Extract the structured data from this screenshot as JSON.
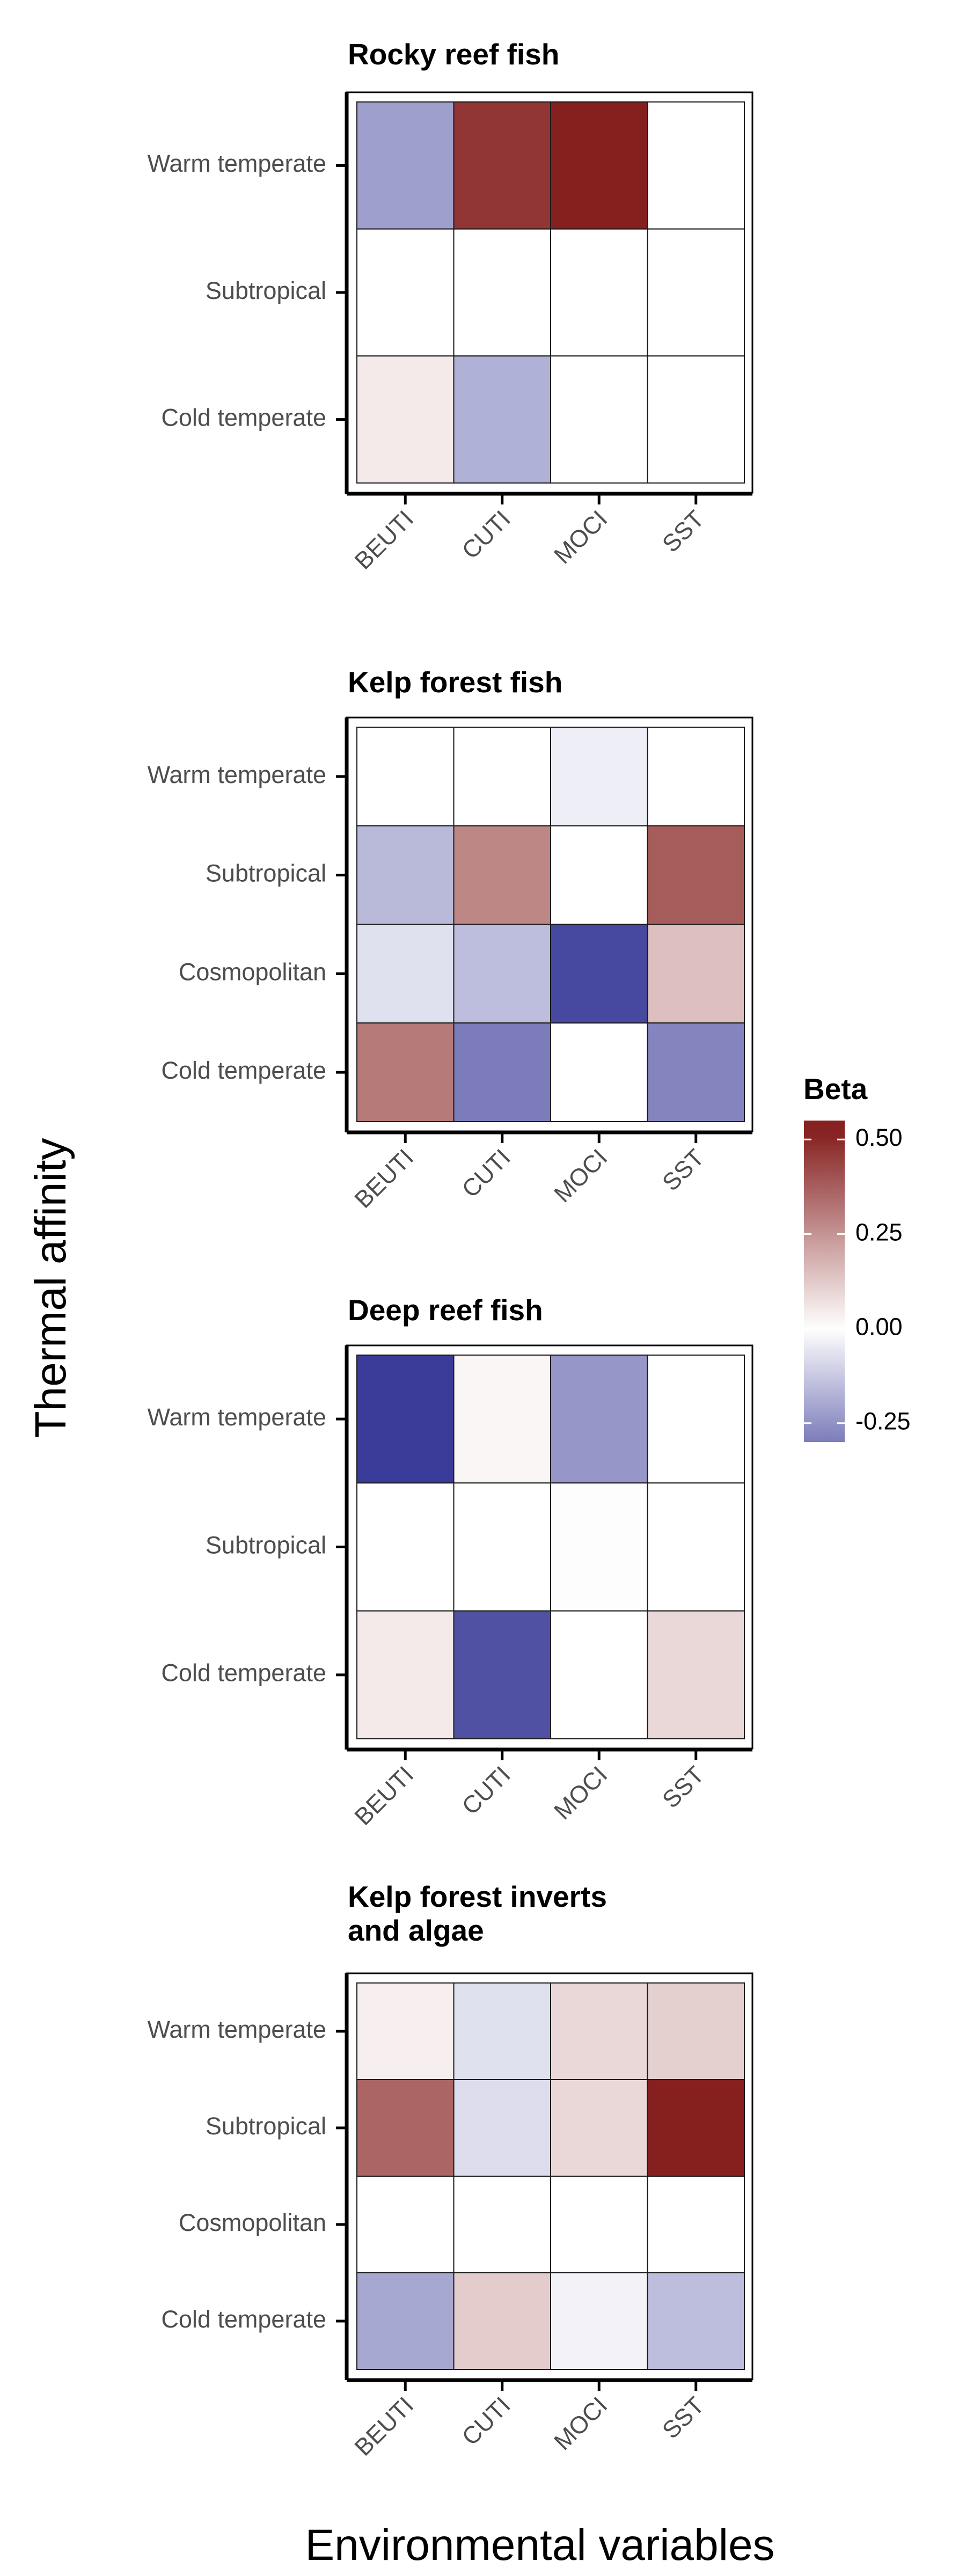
{
  "chart_data": {
    "type": "heatmap",
    "xlabel": "Environmental variables",
    "ylabel": "Thermal affinity",
    "legend": {
      "title": "Beta",
      "ticks": [
        0.5,
        0.25,
        0.0,
        -0.25
      ],
      "tick_labels": [
        "0.50",
        "0.25",
        "0.00",
        "-0.25"
      ],
      "range": [
        -0.3,
        0.55
      ],
      "colors": {
        "high": "#85201f",
        "mid": "#ffffff",
        "low": "#3a3b98"
      }
    },
    "panels": [
      {
        "title_lines": [
          "Rocky reef fish"
        ],
        "x": [
          "BEUTI",
          "CUTI",
          "MOCI",
          "SST"
        ],
        "y": [
          "Warm temperate",
          "Subtropical",
          "Cold temperate"
        ],
        "z": [
          [
            -0.22,
            0.47,
            0.52,
            0.0
          ],
          [
            0.0,
            0.0,
            0.0,
            0.0
          ],
          [
            0.05,
            -0.18,
            0.0,
            0.0
          ]
        ]
      },
      {
        "title_lines": [
          "Kelp forest fish"
        ],
        "x": [
          "BEUTI",
          "CUTI",
          "MOCI",
          "SST"
        ],
        "y": [
          "Warm temperate",
          "Subtropical",
          "Cosmopolitan",
          "Cold temperate"
        ],
        "z": [
          [
            0.0,
            0.0,
            -0.04,
            0.0
          ],
          [
            -0.16,
            0.28,
            0.0,
            0.38
          ],
          [
            -0.07,
            -0.15,
            -0.42,
            0.15
          ],
          [
            0.31,
            -0.3,
            0.0,
            -0.28
          ]
        ]
      },
      {
        "title_lines": [
          "Deep reef fish"
        ],
        "x": [
          "BEUTI",
          "CUTI",
          "MOCI",
          "SST"
        ],
        "y": [
          "Warm temperate",
          "Subtropical",
          "Cold temperate"
        ],
        "z": [
          [
            -0.45,
            0.02,
            -0.24,
            0.0
          ],
          [
            0.0,
            0.0,
            0.005,
            0.0
          ],
          [
            0.05,
            -0.4,
            0.0,
            0.09
          ]
        ]
      },
      {
        "title_lines": [
          "Kelp forest inverts",
          "and algae"
        ],
        "x": [
          "BEUTI",
          "CUTI",
          "MOCI",
          "SST"
        ],
        "y": [
          "Warm temperate",
          "Subtropical",
          "Cosmopolitan",
          "Cold temperate"
        ],
        "z": [
          [
            0.04,
            -0.07,
            0.09,
            0.11
          ],
          [
            0.36,
            -0.08,
            0.09,
            0.52
          ],
          [
            0.0,
            0.0,
            0.0,
            0.0
          ],
          [
            -0.2,
            0.12,
            -0.03,
            -0.15
          ]
        ]
      }
    ]
  }
}
